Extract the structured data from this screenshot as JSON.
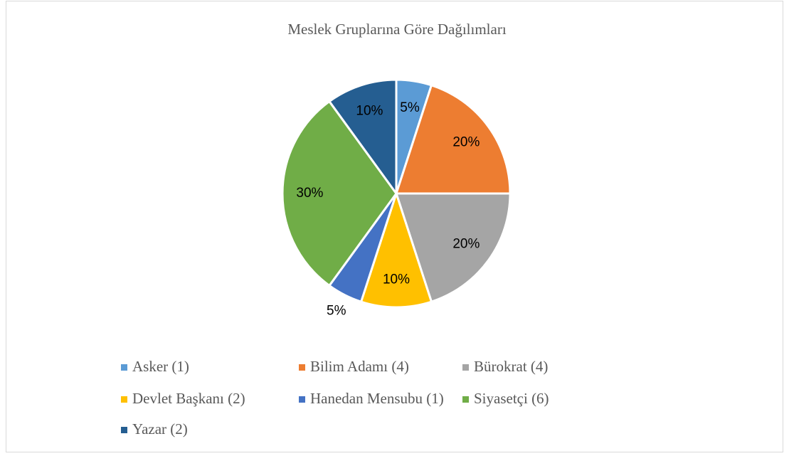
{
  "chart_data": {
    "type": "pie",
    "title": "Meslek Gruplarına Göre Dağılımları",
    "categories": [
      "Asker (1)",
      "Bilim Adamı (4)",
      "Bürokrat (4)",
      "Devlet Başkanı (2)",
      "Hanedan Mensubu (1)",
      "Siyasetçi (6)",
      "Yazar (2)"
    ],
    "values": [
      5,
      20,
      20,
      10,
      5,
      30,
      10
    ],
    "value_labels": [
      "5%",
      "20%",
      "20%",
      "10%",
      "5%",
      "30%",
      "10%"
    ],
    "colors": [
      "#5b9bd5",
      "#ed7d31",
      "#a5a5a5",
      "#ffc000",
      "#4472c4",
      "#70ad47",
      "#255e91"
    ],
    "legend": "bottom"
  }
}
